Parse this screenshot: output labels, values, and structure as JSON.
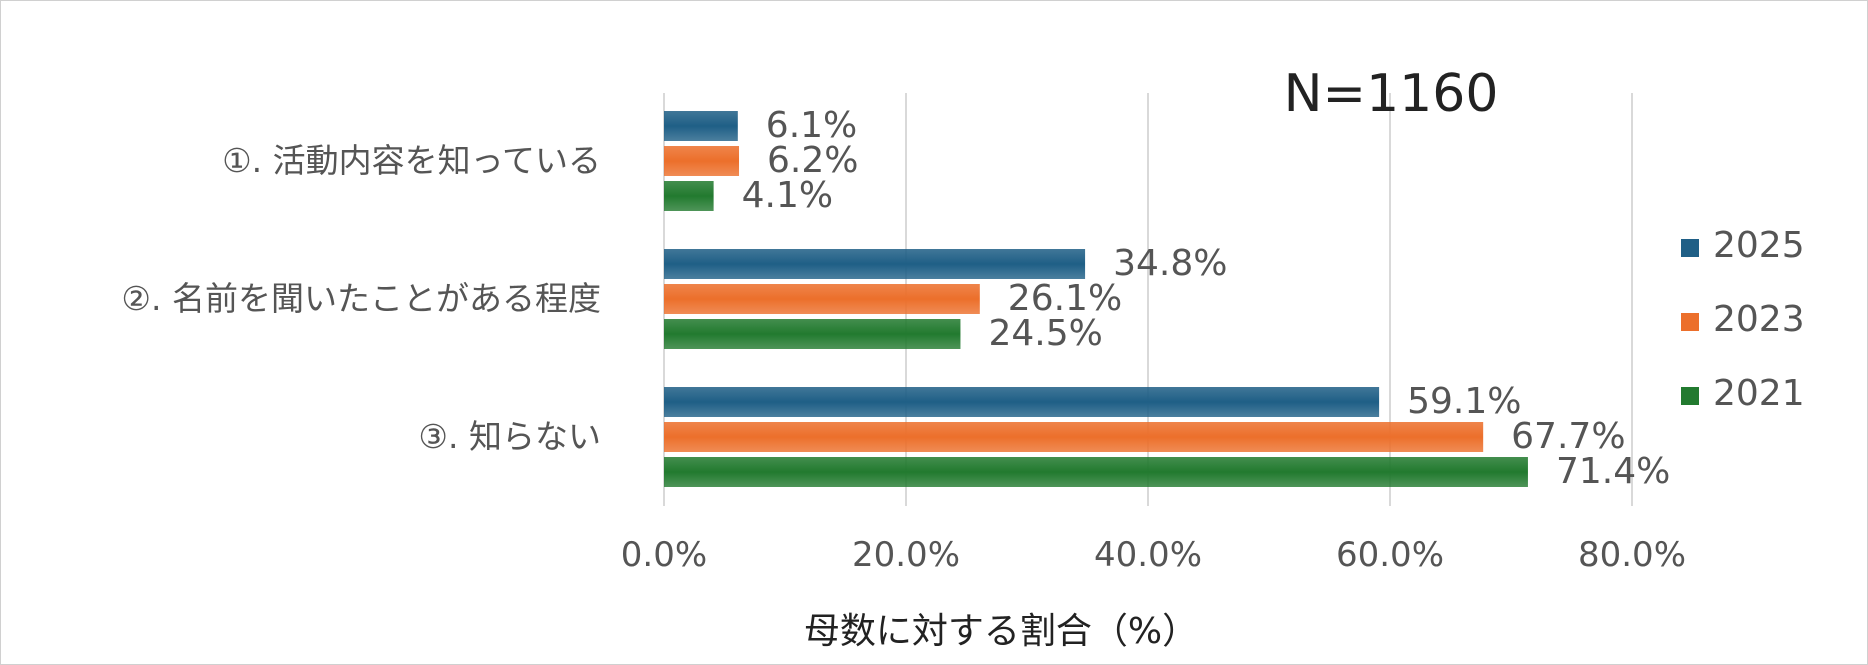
{
  "chart_data": {
    "type": "bar",
    "orientation": "horizontal",
    "annotation": "N=1160",
    "xlabel": "母数に対する割合（%）",
    "ylabel": "",
    "xlim": [
      0,
      80
    ],
    "x_ticks": [
      "0.0%",
      "20.0%",
      "40.0%",
      "60.0%",
      "80.0%"
    ],
    "grid": true,
    "legend_position": "right",
    "categories": [
      "①. 活動内容を知っている",
      "②. 名前を聞いたことがある程度",
      "③. 知らない"
    ],
    "series": [
      {
        "name": "2025",
        "color": "#1f5f86",
        "values": [
          6.1,
          34.8,
          59.1
        ],
        "labels": [
          "6.1%",
          "34.8%",
          "59.1%"
        ]
      },
      {
        "name": "2023",
        "color": "#ec6f2b",
        "values": [
          6.2,
          26.1,
          67.7
        ],
        "labels": [
          "6.2%",
          "26.1%",
          "67.7%"
        ]
      },
      {
        "name": "2021",
        "color": "#227a2f",
        "values": [
          4.1,
          24.5,
          71.4
        ],
        "labels": [
          "4.1%",
          "24.5%",
          "71.4%"
        ]
      }
    ]
  }
}
